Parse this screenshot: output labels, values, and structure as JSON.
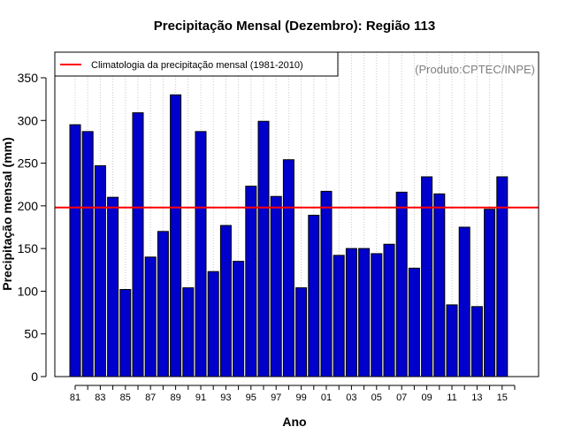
{
  "chart_data": {
    "type": "bar",
    "title": "Precipitação Mensal (Dezembro): Região 113",
    "xlabel": "Ano",
    "ylabel": "Precipitação mensal (mm)",
    "ylim": [
      0,
      380
    ],
    "yticks": [
      0,
      50,
      100,
      150,
      200,
      250,
      300,
      350
    ],
    "grid": "vertical dotted",
    "categories": [
      "81",
      "82",
      "83",
      "84",
      "85",
      "86",
      "87",
      "88",
      "89",
      "90",
      "91",
      "92",
      "93",
      "94",
      "95",
      "96",
      "97",
      "98",
      "99",
      "00",
      "01",
      "02",
      "03",
      "04",
      "05",
      "06",
      "07",
      "08",
      "09",
      "10",
      "11",
      "12",
      "13",
      "14",
      "15"
    ],
    "xtick_labels": [
      "81",
      "83",
      "85",
      "87",
      "89",
      "91",
      "93",
      "95",
      "97",
      "99",
      "01",
      "03",
      "05",
      "07",
      "09",
      "11",
      "13",
      "15"
    ],
    "values": [
      295,
      287,
      247,
      210,
      102,
      309,
      140,
      170,
      330,
      104,
      287,
      123,
      177,
      135,
      223,
      299,
      211,
      254,
      104,
      189,
      217,
      142,
      150,
      150,
      144,
      155,
      216,
      127,
      234,
      214,
      84,
      175,
      82,
      196,
      234
    ],
    "bar_color": "#0000CD",
    "climatology": {
      "value": 198,
      "label": "Climatologia da precipitação mensal (1981-2010)",
      "color": "#FF0000"
    },
    "legend_position": "top-left",
    "annotation": "(Produto:CPTEC/INPE)"
  }
}
